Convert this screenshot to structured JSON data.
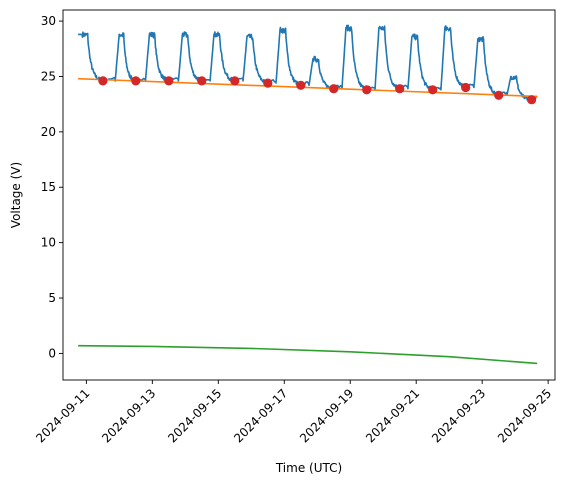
{
  "chart_data": {
    "type": "line",
    "title": "",
    "xlabel": "Time (UTC)",
    "ylabel": "Voltage (V)",
    "x_ticks": [
      "2024-09-11",
      "2024-09-13",
      "2024-09-15",
      "2024-09-17",
      "2024-09-19",
      "2024-09-21",
      "2024-09-23",
      "2024-09-25"
    ],
    "y_ticks": [
      0,
      5,
      10,
      15,
      20,
      25,
      30
    ],
    "xlim": [
      "2024-09-10T07:00",
      "2024-09-25T05:00"
    ],
    "ylim": [
      -2.4,
      31.0
    ],
    "grid": false,
    "colors": {
      "voltage": "#1f77b4",
      "fit": "#ff7f0e",
      "second": "#2ca02c",
      "minima": "#d62728"
    },
    "cycles": [
      {
        "start": "2024-09-10T18:00",
        "min": "2024-09-11T12:00",
        "minV": 24.6,
        "peak": 28.8
      },
      {
        "start": "2024-09-11T21:00",
        "min": "2024-09-12T12:00",
        "minV": 24.6,
        "peak": 28.8
      },
      {
        "start": "2024-09-12T19:00",
        "min": "2024-09-13T12:00",
        "minV": 24.6,
        "peak": 28.8
      },
      {
        "start": "2024-09-13T19:00",
        "min": "2024-09-14T12:00",
        "minV": 24.6,
        "peak": 28.8
      },
      {
        "start": "2024-09-14T18:00",
        "min": "2024-09-15T12:00",
        "minV": 24.6,
        "peak": 28.8
      },
      {
        "start": "2024-09-15T18:00",
        "min": "2024-09-16T12:00",
        "minV": 24.4,
        "peak": 28.6
      },
      {
        "start": "2024-09-16T18:00",
        "min": "2024-09-17T12:00",
        "minV": 24.2,
        "peak": 29.2
      },
      {
        "start": "2024-09-17T18:00",
        "min": "2024-09-18T12:00",
        "minV": 23.9,
        "peak": 26.6
      },
      {
        "start": "2024-09-18T18:00",
        "min": "2024-09-19T12:00",
        "minV": 23.8,
        "peak": 29.4
      },
      {
        "start": "2024-09-19T18:00",
        "min": "2024-09-20T12:00",
        "minV": 23.9,
        "peak": 29.4
      },
      {
        "start": "2024-09-20T18:00",
        "min": "2024-09-21T12:00",
        "minV": 23.8,
        "peak": 28.6
      },
      {
        "start": "2024-09-21T18:00",
        "min": "2024-09-22T12:00",
        "minV": 24.0,
        "peak": 29.4
      },
      {
        "start": "2024-09-22T18:00",
        "min": "2024-09-23T12:00",
        "minV": 23.3,
        "peak": 28.4
      },
      {
        "start": "2024-09-23T18:00",
        "min": "2024-09-24T12:00",
        "minV": 22.9,
        "peak": 25.0
      }
    ],
    "series": [
      {
        "name": "",
        "type": "line",
        "x": [
          "2024-09-10T18:00",
          "2024-09-24T16:00"
        ],
        "y": [
          24.8,
          23.2
        ]
      },
      {
        "name": "",
        "type": "line",
        "x": [
          "2024-09-10T18:00",
          "2024-09-13T00:00",
          "2024-09-16T00:00",
          "2024-09-19T00:00",
          "2024-09-22T00:00",
          "2024-09-24T16:00"
        ],
        "y": [
          0.7,
          0.63,
          0.45,
          0.15,
          -0.3,
          -0.9
        ]
      }
    ]
  }
}
